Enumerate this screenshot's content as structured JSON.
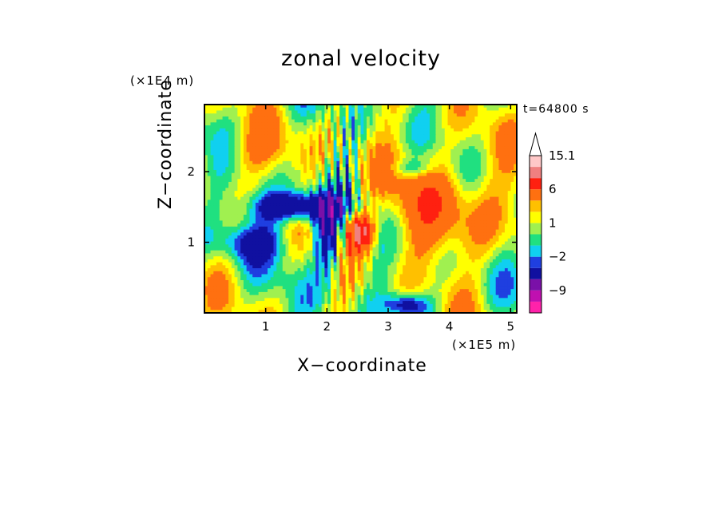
{
  "chart_data": {
    "type": "heatmap",
    "title": "zonal velocity",
    "xlabel": "X−coordinate",
    "ylabel": "Z−coordinate",
    "x_unit_label": "(×1E5 m)",
    "y_unit_label": "(×1E4 m)",
    "annotation": "t=64800 s",
    "xlim": [
      0,
      5.1
    ],
    "ylim": [
      0,
      2.95
    ],
    "x_ticks": [
      1,
      2,
      3,
      4,
      5
    ],
    "x_tick_labels": [
      "1",
      "2",
      "3",
      "4",
      "5"
    ],
    "y_ticks": [
      1,
      2
    ],
    "y_tick_labels": [
      "1",
      "2"
    ],
    "colorbar": {
      "levels": [
        -16,
        -12,
        -9,
        -6,
        -3,
        -2,
        -1,
        0,
        1,
        2,
        3,
        6,
        9,
        12,
        15.1
      ],
      "colors": [
        "#ff22aa",
        "#c010b0",
        "#7a10a8",
        "#1010a0",
        "#1f3fe0",
        "#10d0f0",
        "#20e080",
        "#a0f050",
        "#ffff00",
        "#ffc000",
        "#ff7010",
        "#ff2010",
        "#f08080",
        "#ffc8c8"
      ],
      "extend": "max",
      "tick_labels": [
        "15.1",
        "6",
        "1",
        "−2",
        "−9"
      ],
      "tick_values": [
        15.1,
        6,
        1,
        -2,
        -9
      ]
    }
  },
  "colors": {
    "background": "#ffffff",
    "frame": "#000000"
  }
}
